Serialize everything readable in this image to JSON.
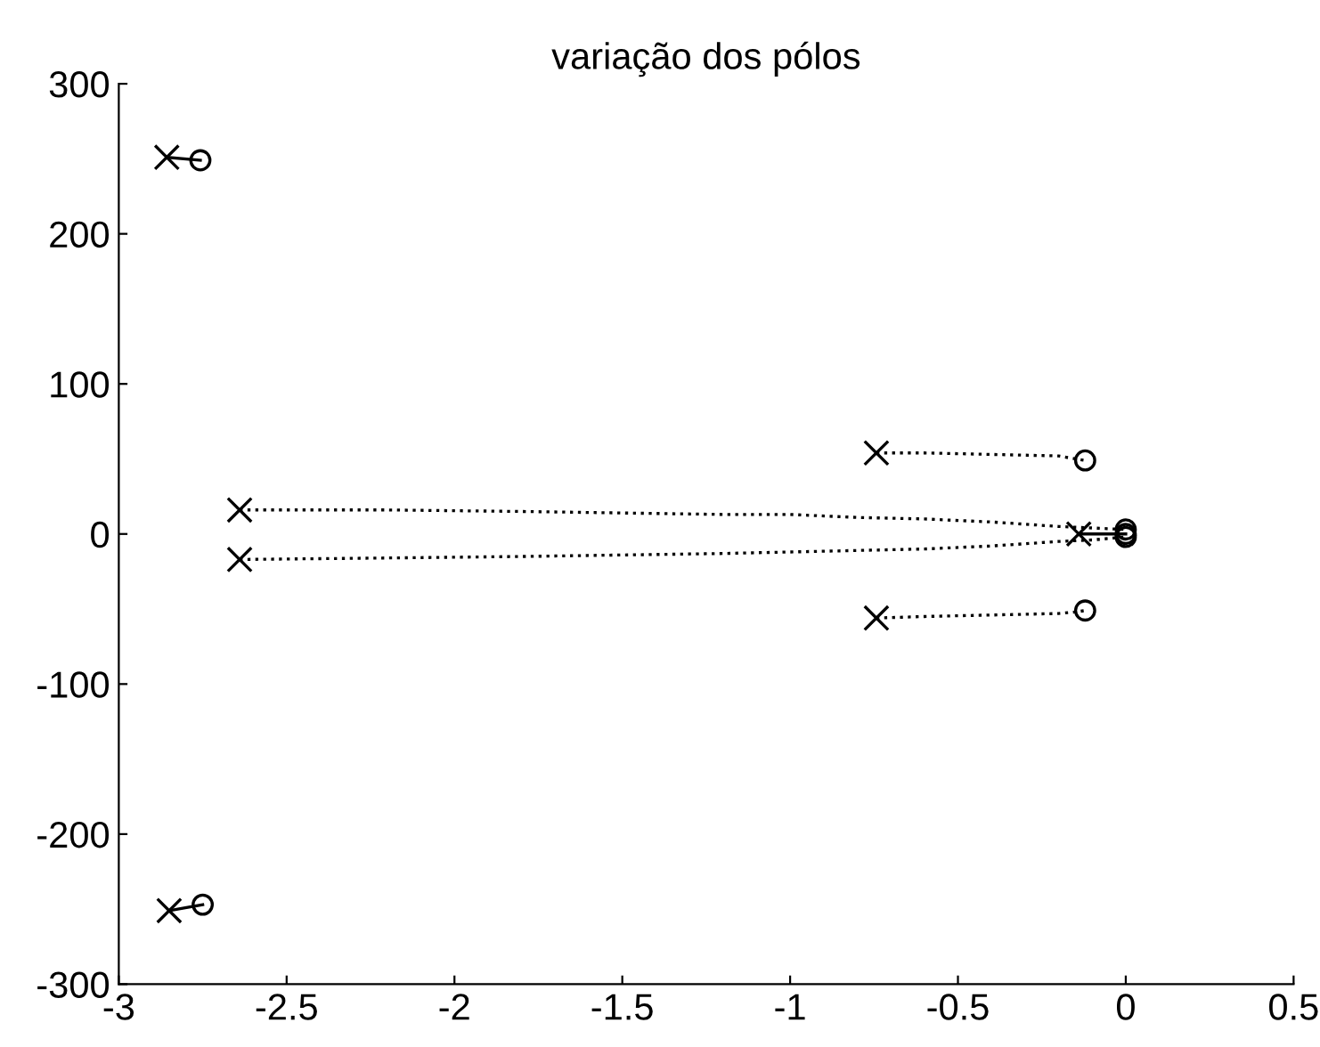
{
  "chart_data": {
    "type": "line",
    "title": "variação dos pólos",
    "xlim": [
      -3,
      0.5
    ],
    "xticks": [
      -3,
      -2.5,
      -2,
      -1.5,
      -1,
      -0.5,
      0,
      0.5
    ],
    "ylim": [
      -300,
      300
    ],
    "yticks": [
      -300,
      -200,
      -100,
      0,
      100,
      200,
      300
    ],
    "grid": false,
    "legend": false,
    "series": [
      {
        "color": "#000000",
        "line_style": "solid",
        "marker": "none",
        "x": [
          -2.857,
          -2.757
        ],
        "values": [
          251,
          249
        ]
      },
      {
        "color": "#000000",
        "line_style": "solid",
        "marker": "none",
        "x": [
          -2.85,
          -2.75
        ],
        "values": [
          -251,
          -247
        ]
      },
      {
        "color": "#000000",
        "line_style": "dotted",
        "marker": "none",
        "x": [
          -2.64,
          -2.2,
          -1.8,
          -1.5,
          -1.2,
          -1.0,
          -0.8,
          -0.6,
          -0.4,
          -0.2,
          -0.1,
          0
        ],
        "values": [
          16,
          16,
          15,
          14,
          13,
          13,
          11,
          10,
          8,
          5,
          4,
          3
        ]
      },
      {
        "color": "#000000",
        "line_style": "dotted",
        "marker": "none",
        "x": [
          -2.64,
          -2.2,
          -1.8,
          -1.5,
          -1.2,
          -1.0,
          -0.8,
          -0.6,
          -0.4,
          -0.2,
          -0.1,
          0
        ],
        "values": [
          -17,
          -16,
          -15,
          -14,
          -13,
          -12,
          -11,
          -10,
          -8,
          -5,
          -4,
          -2
        ]
      },
      {
        "color": "#000000",
        "line_style": "dotted",
        "marker": "none",
        "x": [
          -0.743,
          -0.6,
          -0.4,
          -0.2,
          -0.15,
          -0.121
        ],
        "values": [
          54,
          54,
          53,
          52,
          50,
          49
        ]
      },
      {
        "color": "#000000",
        "line_style": "dotted",
        "marker": "none",
        "x": [
          -0.743,
          -0.6,
          -0.4,
          -0.2,
          -0.15,
          -0.121
        ],
        "values": [
          -56,
          -55,
          -54,
          -53,
          -52,
          -51
        ]
      },
      {
        "color": "#000000",
        "line_style": "solid",
        "marker": "none",
        "x": [
          -0.14,
          0
        ],
        "values": [
          0,
          0
        ]
      },
      {
        "type": "scatter",
        "color": "#000000",
        "marker": "cross",
        "x": [
          -2.857,
          -2.85,
          -2.64,
          -2.64,
          -0.743,
          -0.743,
          -0.14
        ],
        "values": [
          251,
          -251,
          16,
          -17,
          54,
          -56,
          0
        ]
      },
      {
        "type": "scatter",
        "color": "#000000",
        "marker": "circle",
        "x": [
          -2.757,
          -2.75,
          0,
          0,
          -0.121,
          -0.121,
          0
        ],
        "values": [
          249,
          -247,
          3,
          -2,
          49,
          -51,
          0
        ]
      }
    ]
  }
}
